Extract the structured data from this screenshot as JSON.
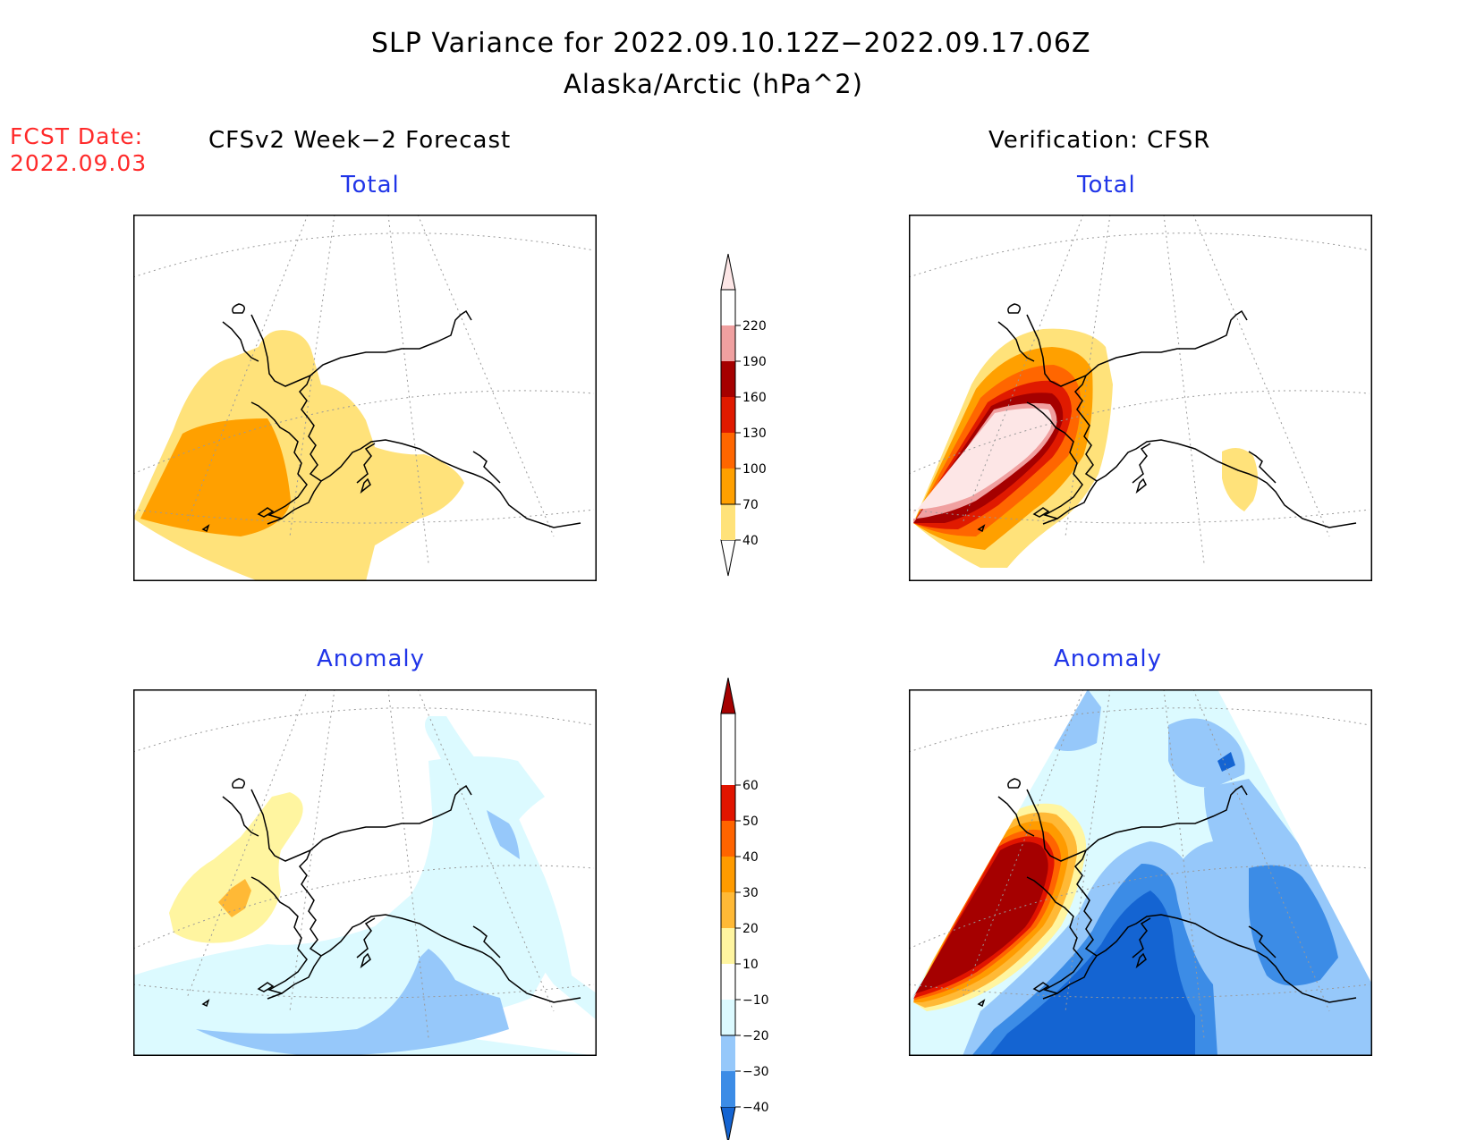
{
  "header": {
    "title": "SLP Variance for 2022.09.10.12Z−2022.09.17.06Z",
    "subtitle": "Alaska/Arctic (hPa^2)"
  },
  "forecast_date": {
    "label": "FCST Date:",
    "value": "2022.09.03"
  },
  "columns": {
    "left": "CFSv2 Week−2 Forecast",
    "right": "Verification: CFSR"
  },
  "panels": {
    "forecast_total": {
      "title": "Total"
    },
    "verification_total": {
      "title": "Total"
    },
    "forecast_anomaly": {
      "title": "Anomaly"
    },
    "verification_anomaly": {
      "title": "Anomaly"
    }
  },
  "colorbars": {
    "total": {
      "ticks": [
        "40",
        "70",
        "100",
        "130",
        "160",
        "190",
        "220"
      ],
      "colors": [
        "#ffe27a",
        "#ffa000",
        "#ff6600",
        "#e01a00",
        "#a50000",
        "#f0a0a0",
        "#fde6e6"
      ]
    },
    "anomaly": {
      "ticks": [
        "−40",
        "−30",
        "−20",
        "−10",
        "10",
        "20",
        "30",
        "40",
        "50",
        "60"
      ],
      "colors": [
        "#1464d2",
        "#3c8ce6",
        "#96c8fa",
        "#dcfaff",
        "#ffffff",
        "#fff5a0",
        "#ffb936",
        "#ff9b00",
        "#ff6400",
        "#e11400",
        "#a50000"
      ]
    }
  },
  "colors": {
    "title_text": "#000000",
    "forecast_date_text": "#ff2a2a",
    "panel_title_text": "#2035e8"
  }
}
